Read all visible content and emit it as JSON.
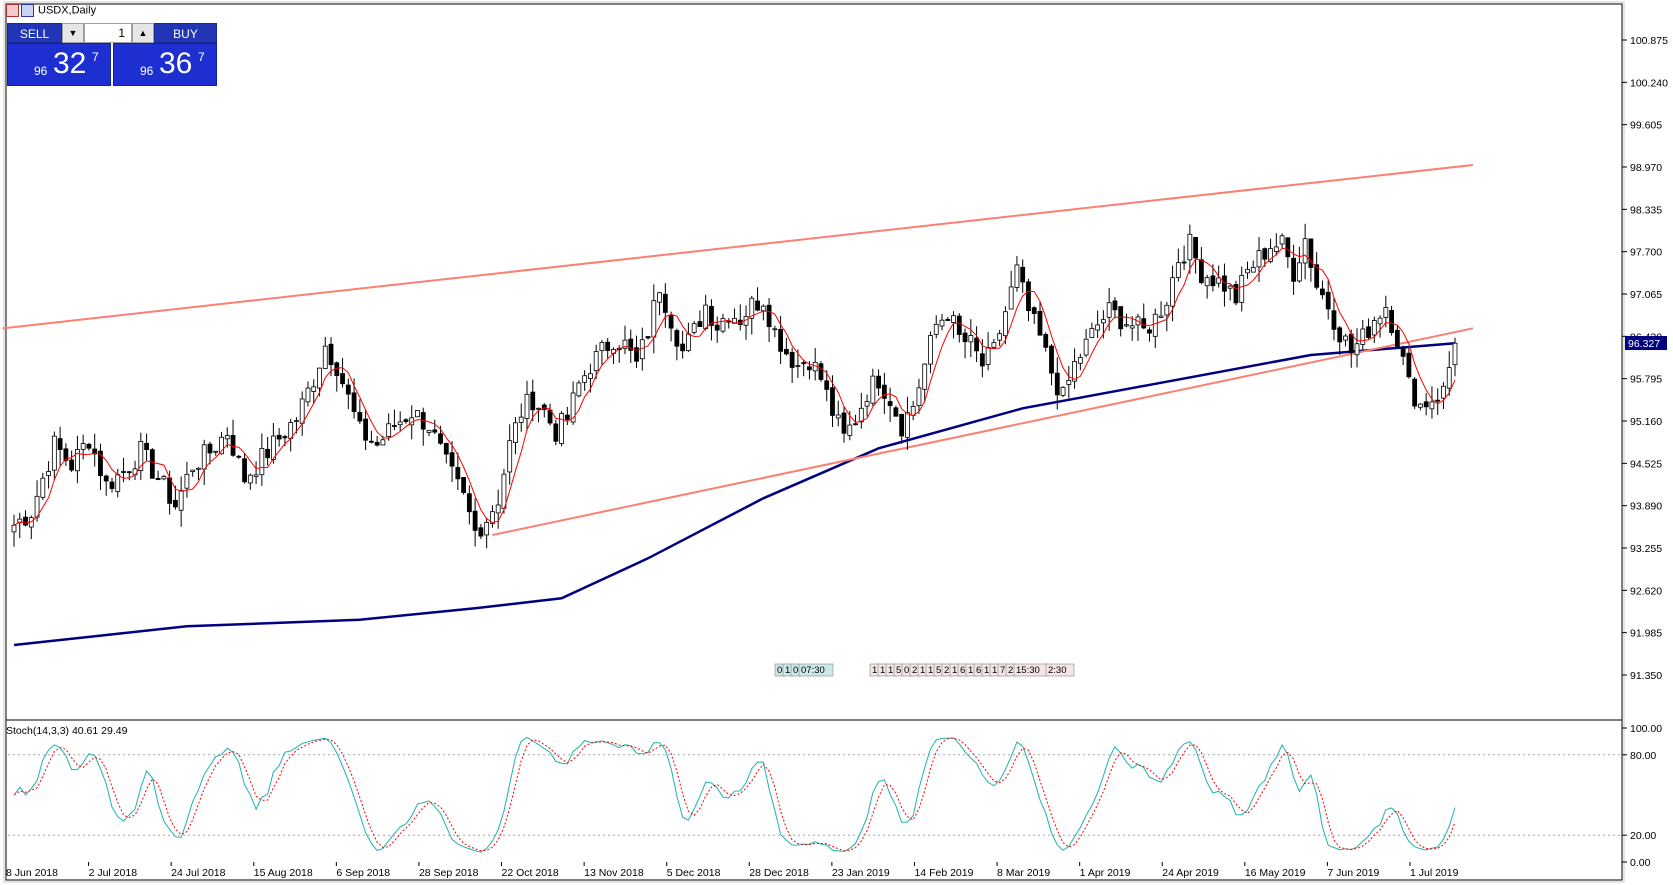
{
  "window": {
    "title": "USDX,Daily"
  },
  "trade_panel": {
    "sell_label": "SELL",
    "buy_label": "BUY",
    "quantity": "1",
    "sell_price": {
      "prefix": "96",
      "big": "32",
      "sup": "7"
    },
    "buy_price": {
      "prefix": "96",
      "big": "36",
      "sup": "7"
    }
  },
  "current_price_label": "96.327",
  "indicator_label": "Stoch(14,3,3) 40.61 29.49",
  "event_markers": [
    "0",
    "1",
    "0",
    "07:30",
    "1",
    "1",
    "1",
    "5",
    "0",
    "2",
    "1",
    "1",
    "5",
    "2",
    "1",
    "6",
    "1",
    "6",
    "1",
    "1",
    "7",
    "2",
    "15:30",
    "2:30"
  ],
  "colors": {
    "candle_bull": "#ffffff",
    "candle_bear": "#000000",
    "ma_fast": "#ff0000",
    "ma_slow": "#000080",
    "trendline": "#fa8072",
    "stoch_main": "#20b2aa",
    "stoch_signal": "#ff0000",
    "price_tag_bg": "#000080"
  },
  "chart_data": {
    "type": "candlestick",
    "symbol": "USDX",
    "timeframe": "Daily",
    "y_ticks": [
      "100.875",
      "100.240",
      "99.605",
      "98.970",
      "98.335",
      "97.700",
      "97.065",
      "96.430",
      "95.795",
      "95.160",
      "94.525",
      "93.890",
      "93.255",
      "92.620",
      "91.985",
      "91.350"
    ],
    "x_ticks": [
      "8 Jun 2018",
      "2 Jul 2018",
      "24 Jul 2018",
      "15 Aug 2018",
      "6 Sep 2018",
      "28 Sep 2018",
      "22 Oct 2018",
      "13 Nov 2018",
      "5 Dec 2018",
      "28 Dec 2018",
      "23 Jan 2019",
      "14 Feb 2019",
      "8 Mar 2019",
      "1 Apr 2019",
      "24 Apr 2019",
      "16 May 2019",
      "7 Jun 2019",
      "1 Jul 2019"
    ],
    "ylim": [
      90.8,
      101.5
    ],
    "last_price": 96.327,
    "close_path": [
      [
        0,
        93.6
      ],
      [
        3,
        93.8
      ],
      [
        7,
        94.8
      ],
      [
        10,
        94.5
      ],
      [
        13,
        94.9
      ],
      [
        16,
        94.2
      ],
      [
        19,
        94.4
      ],
      [
        22,
        94.7
      ],
      [
        25,
        94.3
      ],
      [
        28,
        93.9
      ],
      [
        31,
        94.5
      ],
      [
        34,
        94.7
      ],
      [
        37,
        95.0
      ],
      [
        40,
        94.3
      ],
      [
        43,
        94.6
      ],
      [
        46,
        94.9
      ],
      [
        49,
        95.2
      ],
      [
        52,
        95.8
      ],
      [
        54,
        96.3
      ],
      [
        56,
        96.0
      ],
      [
        58,
        95.5
      ],
      [
        60,
        95.0
      ],
      [
        63,
        94.8
      ],
      [
        66,
        95.1
      ],
      [
        69,
        95.3
      ],
      [
        72,
        95.1
      ],
      [
        75,
        94.5
      ],
      [
        78,
        94.0
      ],
      [
        80,
        93.5
      ],
      [
        82,
        93.7
      ],
      [
        84,
        94.0
      ],
      [
        86,
        94.8
      ],
      [
        88,
        95.3
      ],
      [
        90,
        95.5
      ],
      [
        92,
        95.3
      ],
      [
        94,
        95.0
      ],
      [
        96,
        95.2
      ],
      [
        98,
        95.7
      ],
      [
        100,
        96.0
      ],
      [
        102,
        96.2
      ],
      [
        104,
        96.4
      ],
      [
        106,
        96.3
      ],
      [
        108,
        96.0
      ],
      [
        110,
        96.5
      ],
      [
        112,
        97.2
      ],
      [
        114,
        96.7
      ],
      [
        116,
        96.2
      ],
      [
        118,
        96.5
      ],
      [
        120,
        96.9
      ],
      [
        122,
        96.6
      ],
      [
        124,
        96.8
      ],
      [
        126,
        96.7
      ],
      [
        128,
        96.9
      ],
      [
        130,
        97.0
      ],
      [
        132,
        96.5
      ],
      [
        134,
        96.2
      ],
      [
        136,
        96.0
      ],
      [
        138,
        96.1
      ],
      [
        140,
        95.8
      ],
      [
        142,
        95.3
      ],
      [
        144,
        94.9
      ],
      [
        146,
        95.2
      ],
      [
        148,
        95.6
      ],
      [
        150,
        95.8
      ],
      [
        152,
        95.5
      ],
      [
        154,
        95.1
      ],
      [
        156,
        95.4
      ],
      [
        158,
        96.0
      ],
      [
        160,
        96.6
      ],
      [
        162,
        96.8
      ],
      [
        164,
        96.4
      ],
      [
        166,
        96.3
      ],
      [
        168,
        96.0
      ],
      [
        170,
        96.2
      ],
      [
        172,
        96.8
      ],
      [
        174,
        97.4
      ],
      [
        176,
        96.8
      ],
      [
        178,
        96.4
      ],
      [
        180,
        95.9
      ],
      [
        182,
        95.5
      ],
      [
        184,
        96.0
      ],
      [
        186,
        96.3
      ],
      [
        188,
        96.6
      ],
      [
        190,
        96.8
      ],
      [
        192,
        96.7
      ],
      [
        194,
        96.6
      ],
      [
        196,
        96.5
      ],
      [
        198,
        96.7
      ],
      [
        200,
        97.0
      ],
      [
        202,
        97.6
      ],
      [
        204,
        97.8
      ],
      [
        206,
        97.4
      ],
      [
        208,
        97.3
      ],
      [
        210,
        97.2
      ],
      [
        212,
        97.0
      ],
      [
        214,
        97.4
      ],
      [
        216,
        97.6
      ],
      [
        218,
        97.8
      ],
      [
        220,
        97.8
      ],
      [
        222,
        97.4
      ],
      [
        224,
        97.9
      ],
      [
        226,
        97.2
      ],
      [
        228,
        96.9
      ],
      [
        230,
        96.5
      ],
      [
        232,
        96.2
      ],
      [
        234,
        96.4
      ],
      [
        236,
        96.7
      ],
      [
        238,
        96.9
      ],
      [
        240,
        96.4
      ],
      [
        242,
        95.7
      ],
      [
        244,
        95.4
      ],
      [
        246,
        95.5
      ],
      [
        248,
        95.6
      ],
      [
        250,
        96.327
      ]
    ],
    "series": [
      {
        "name": "MA (fast)",
        "color": "#ff0000"
      },
      {
        "name": "MA (slow)",
        "color": "#000080",
        "points": [
          [
            0,
            91.8
          ],
          [
            30,
            92.08
          ],
          [
            60,
            92.18
          ],
          [
            80,
            92.35
          ],
          [
            95,
            92.5
          ],
          [
            110,
            93.1
          ],
          [
            130,
            94.0
          ],
          [
            150,
            94.75
          ],
          [
            175,
            95.35
          ],
          [
            200,
            95.75
          ],
          [
            225,
            96.15
          ],
          [
            250,
            96.327
          ]
        ]
      }
    ],
    "trendlines": [
      {
        "from": [
          -2,
          96.55
        ],
        "to": [
          250,
          99.0
        ]
      },
      {
        "from": [
          83,
          93.45
        ],
        "to": [
          250,
          96.55
        ]
      }
    ],
    "stochastic": {
      "name": "Stoch(14,3,3)",
      "main": 40.61,
      "signal": 29.49,
      "levels": [
        80,
        20
      ],
      "y_ticks": [
        "100.00",
        "80.00",
        "20.00",
        "0.00"
      ]
    }
  }
}
